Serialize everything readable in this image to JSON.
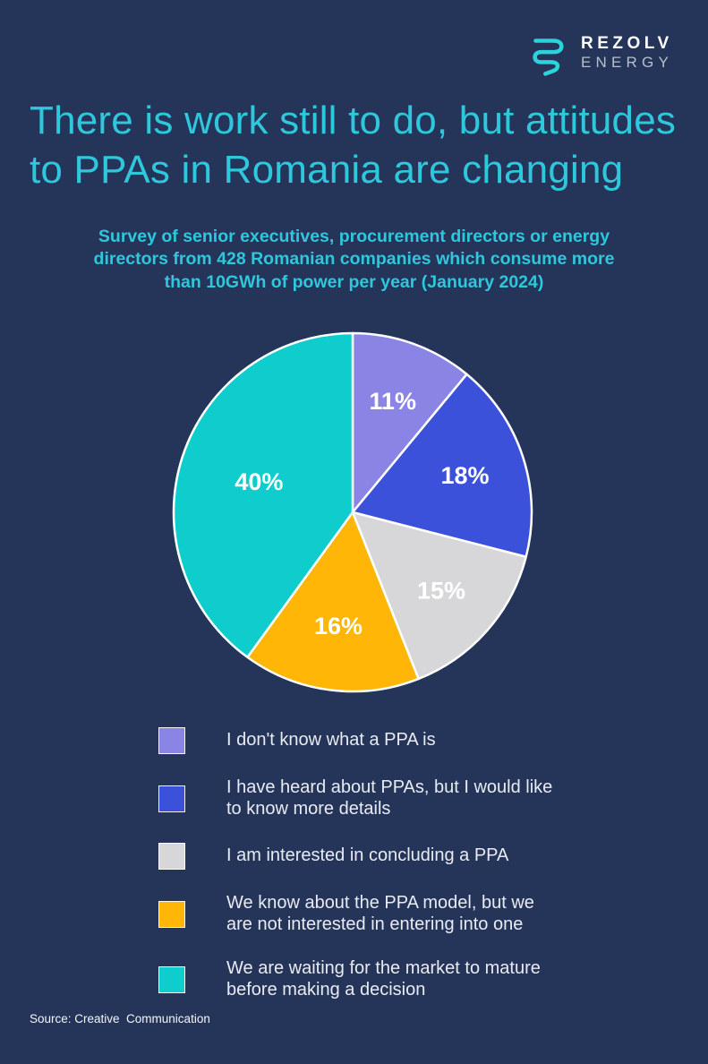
{
  "colors": {
    "background": "#253459",
    "accent-cyan": "#2EC7DC",
    "logo-teal": "#2BD4DB",
    "logo-secondary-text": "#B7BFCF",
    "text-light": "#E9EBF2",
    "white": "#FFFFFF"
  },
  "brand": {
    "primary": "REZOLV",
    "secondary": "ENERGY"
  },
  "page": {
    "title": "There is work still to do, but attitudes\nto PPAs in Romania are changing",
    "subtitle": "Survey of senior executives, procurement directors or energy\ndirectors from 428 Romanian companies which consume more\nthan 10GWh of power per year (January 2024)",
    "source": "Source: Creative  Communication"
  },
  "legend": {
    "items": [
      {
        "label": "I don't know what a PPA is"
      },
      {
        "label": "I have heard about PPAs, but I would like\nto know more details"
      },
      {
        "label": "I am interested in concluding a PPA"
      },
      {
        "label": "We know about the PPA model, but we\nare not interested in entering into one"
      },
      {
        "label": "We are waiting for the market to mature\nbefore making a decision"
      }
    ]
  },
  "chart_data": {
    "type": "pie",
    "title": "There is work still to do, but attitudes to PPAs in Romania are changing",
    "subtitle": "Survey of senior executives, procurement directors or energy directors from 428 Romanian companies which consume more than 10GWh of power per year (January 2024)",
    "source": "Source: Creative Communication",
    "categories": [
      "I don't know what a PPA is",
      "I have heard about PPAs, but I would like to know more details",
      "I am interested in concluding a PPA",
      "We know about the PPA model, but we are not interested in entering into one",
      "We are waiting for the market to mature before making a decision"
    ],
    "values": [
      11,
      18,
      15,
      16,
      40
    ],
    "total": 100,
    "data_labels": [
      "11%",
      "18%",
      "15%",
      "16%",
      "40%"
    ],
    "colors": [
      "#8A85E4",
      "#3C51D9",
      "#D7D7D9",
      "#FFB607",
      "#10CDCD"
    ],
    "start_angle_deg": 0,
    "direction": "clockwise",
    "slice_border_color": "#FFFFFF",
    "data_label_color": "#FFFFFF",
    "label_radius_factors": [
      0.66,
      0.66,
      0.66,
      0.64,
      0.55
    ],
    "legend_position": "bottom-left"
  }
}
